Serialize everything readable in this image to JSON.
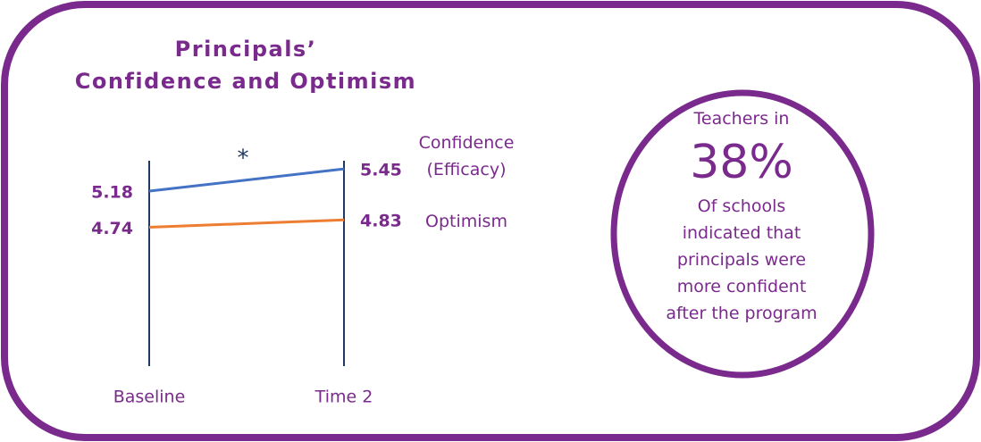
{
  "chart_data": {
    "type": "line",
    "title": [
      "Principals’",
      "Confidence and Optimism"
    ],
    "categories": [
      "Baseline",
      "Time 2"
    ],
    "series": [
      {
        "name": "Confidence (Efficacy)",
        "color": "#4472c4",
        "values": [
          5.18,
          5.45
        ]
      },
      {
        "name": "Optimism",
        "color": "#ed7d31",
        "values": [
          4.74,
          4.83
        ]
      }
    ],
    "ylim": [
      3.05,
      5.55
    ],
    "annotation": "*"
  },
  "callout": {
    "intro": "Teachers in",
    "stat": "38%",
    "lines": [
      "Of schools",
      "indicated that",
      "principals were",
      "more confident",
      "after the program"
    ]
  }
}
